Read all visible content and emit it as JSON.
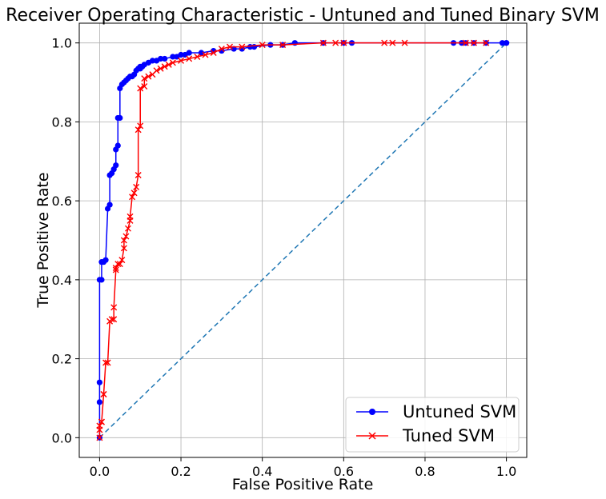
{
  "chart_data": {
    "type": "line",
    "title": "Receiver Operating Characteristic - Untuned and Tuned Binary SVM",
    "xlabel": "False Positive Rate",
    "ylabel": "True Positive Rate",
    "xlim": [
      -0.05,
      1.05
    ],
    "ylim": [
      -0.05,
      1.05
    ],
    "xticks": [
      0.0,
      0.2,
      0.4,
      0.6,
      0.8,
      1.0
    ],
    "yticks": [
      0.0,
      0.2,
      0.4,
      0.6,
      0.8,
      1.0
    ],
    "xtick_labels": [
      "0.0",
      "0.2",
      "0.4",
      "0.6",
      "0.8",
      "1.0"
    ],
    "ytick_labels": [
      "0.0",
      "0.2",
      "0.4",
      "0.6",
      "0.8",
      "1.0"
    ],
    "grid": true,
    "legend_position": "lower-right",
    "series": [
      {
        "name": "Untuned SVM",
        "color": "#0000ff",
        "marker": "circle",
        "x": [
          0,
          0,
          0,
          0,
          0.005,
          0.005,
          0.01,
          0.015,
          0.02,
          0.025,
          0.025,
          0.03,
          0.035,
          0.04,
          0.04,
          0.045,
          0.045,
          0.05,
          0.05,
          0.055,
          0.06,
          0.065,
          0.07,
          0.075,
          0.08,
          0.085,
          0.09,
          0.095,
          0.1,
          0.1,
          0.105,
          0.11,
          0.12,
          0.13,
          0.14,
          0.15,
          0.16,
          0.18,
          0.19,
          0.2,
          0.21,
          0.22,
          0.25,
          0.28,
          0.3,
          0.33,
          0.35,
          0.37,
          0.38,
          0.42,
          0.45,
          0.48,
          0.55,
          0.6,
          0.62,
          0.87,
          0.89,
          0.9,
          0.92,
          0.95,
          0.99,
          1.0,
          1.0
        ],
        "y": [
          0.0,
          0.09,
          0.14,
          0.4,
          0.4,
          0.445,
          0.445,
          0.45,
          0.58,
          0.59,
          0.665,
          0.67,
          0.68,
          0.69,
          0.73,
          0.74,
          0.81,
          0.81,
          0.885,
          0.895,
          0.9,
          0.905,
          0.91,
          0.915,
          0.915,
          0.92,
          0.93,
          0.935,
          0.935,
          0.94,
          0.94,
          0.945,
          0.95,
          0.955,
          0.955,
          0.96,
          0.96,
          0.965,
          0.965,
          0.97,
          0.97,
          0.975,
          0.975,
          0.98,
          0.98,
          0.985,
          0.985,
          0.99,
          0.99,
          0.995,
          0.995,
          1.0,
          1.0,
          1.0,
          1.0,
          1.0,
          1.0,
          1.0,
          1.0,
          1.0,
          1.0,
          1.0,
          1.0
        ]
      },
      {
        "name": "Tuned SVM",
        "color": "#ff0000",
        "marker": "x",
        "x": [
          0,
          0,
          0,
          0.005,
          0.005,
          0.01,
          0.01,
          0.015,
          0.02,
          0.025,
          0.03,
          0.035,
          0.035,
          0.04,
          0.04,
          0.045,
          0.05,
          0.055,
          0.06,
          0.06,
          0.065,
          0.07,
          0.075,
          0.075,
          0.08,
          0.085,
          0.09,
          0.095,
          0.095,
          0.1,
          0.1,
          0.11,
          0.11,
          0.12,
          0.13,
          0.14,
          0.15,
          0.16,
          0.17,
          0.18,
          0.2,
          0.22,
          0.24,
          0.26,
          0.28,
          0.3,
          0.32,
          0.35,
          0.4,
          0.45,
          0.55,
          0.58,
          0.6,
          0.7,
          0.72,
          0.75,
          0.9,
          0.92,
          0.95
        ],
        "y": [
          0.0,
          0.02,
          0.03,
          0.04,
          0.04,
          0.11,
          0.11,
          0.19,
          0.19,
          0.295,
          0.3,
          0.3,
          0.33,
          0.425,
          0.43,
          0.44,
          0.44,
          0.45,
          0.48,
          0.5,
          0.51,
          0.53,
          0.55,
          0.56,
          0.61,
          0.62,
          0.635,
          0.665,
          0.78,
          0.79,
          0.885,
          0.89,
          0.91,
          0.915,
          0.92,
          0.93,
          0.935,
          0.94,
          0.945,
          0.95,
          0.955,
          0.96,
          0.965,
          0.97,
          0.975,
          0.985,
          0.99,
          0.99,
          0.995,
          0.995,
          1.0,
          1.0,
          1.0,
          1.0,
          1.0,
          1.0,
          1.0,
          1.0,
          1.0
        ]
      },
      {
        "name": "",
        "color": "#1f77b4",
        "marker": "none",
        "dashed": true,
        "x": [
          0,
          1
        ],
        "y": [
          0,
          1
        ]
      }
    ]
  }
}
